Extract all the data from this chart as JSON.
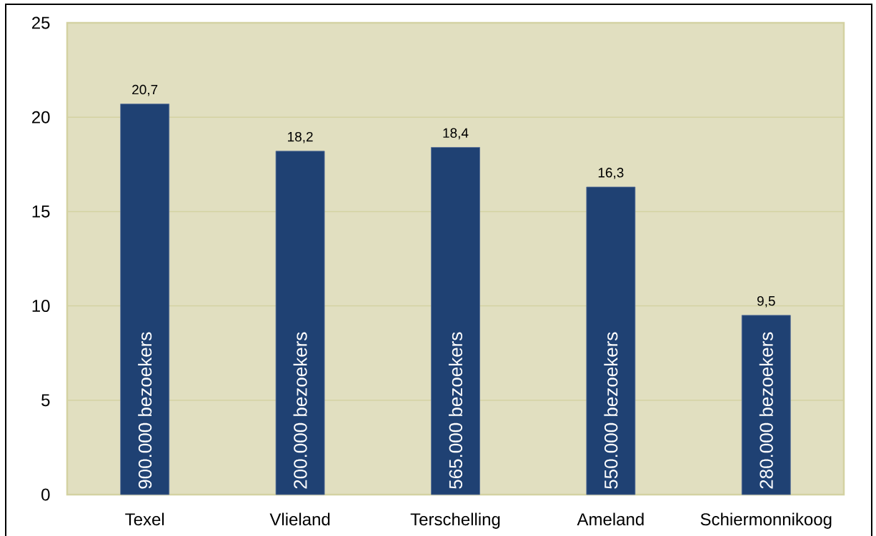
{
  "chart_data": {
    "type": "bar",
    "categories": [
      "Texel",
      "Vlieland",
      "Terschelling",
      "Ameland",
      "Schiermonnikoog"
    ],
    "values": [
      20.7,
      18.2,
      18.4,
      16.3,
      9.5
    ],
    "color": "#1f4173",
    "value_labels": [
      "20,7",
      "18,2",
      "18,4",
      "16,3",
      "9,5"
    ],
    "ylim": [
      0,
      25
    ],
    "yticks": [
      0,
      5,
      10,
      15,
      20,
      25
    ],
    "grid": "y",
    "annotations": [
      {
        "text": "900.000 bezoekers",
        "x": "Texel",
        "y": 0
      },
      {
        "text": "200.000 bezoekers",
        "x": "Vlieland",
        "y": 0
      },
      {
        "text": "565.000 bezoekers",
        "x": "Terschelling",
        "y": 0
      },
      {
        "text": "550.000 bezoekers",
        "x": "Ameland",
        "y": 0
      },
      {
        "text": "280.000 bezoekers",
        "x": "Schiermonnikoog",
        "y": 0
      }
    ]
  }
}
